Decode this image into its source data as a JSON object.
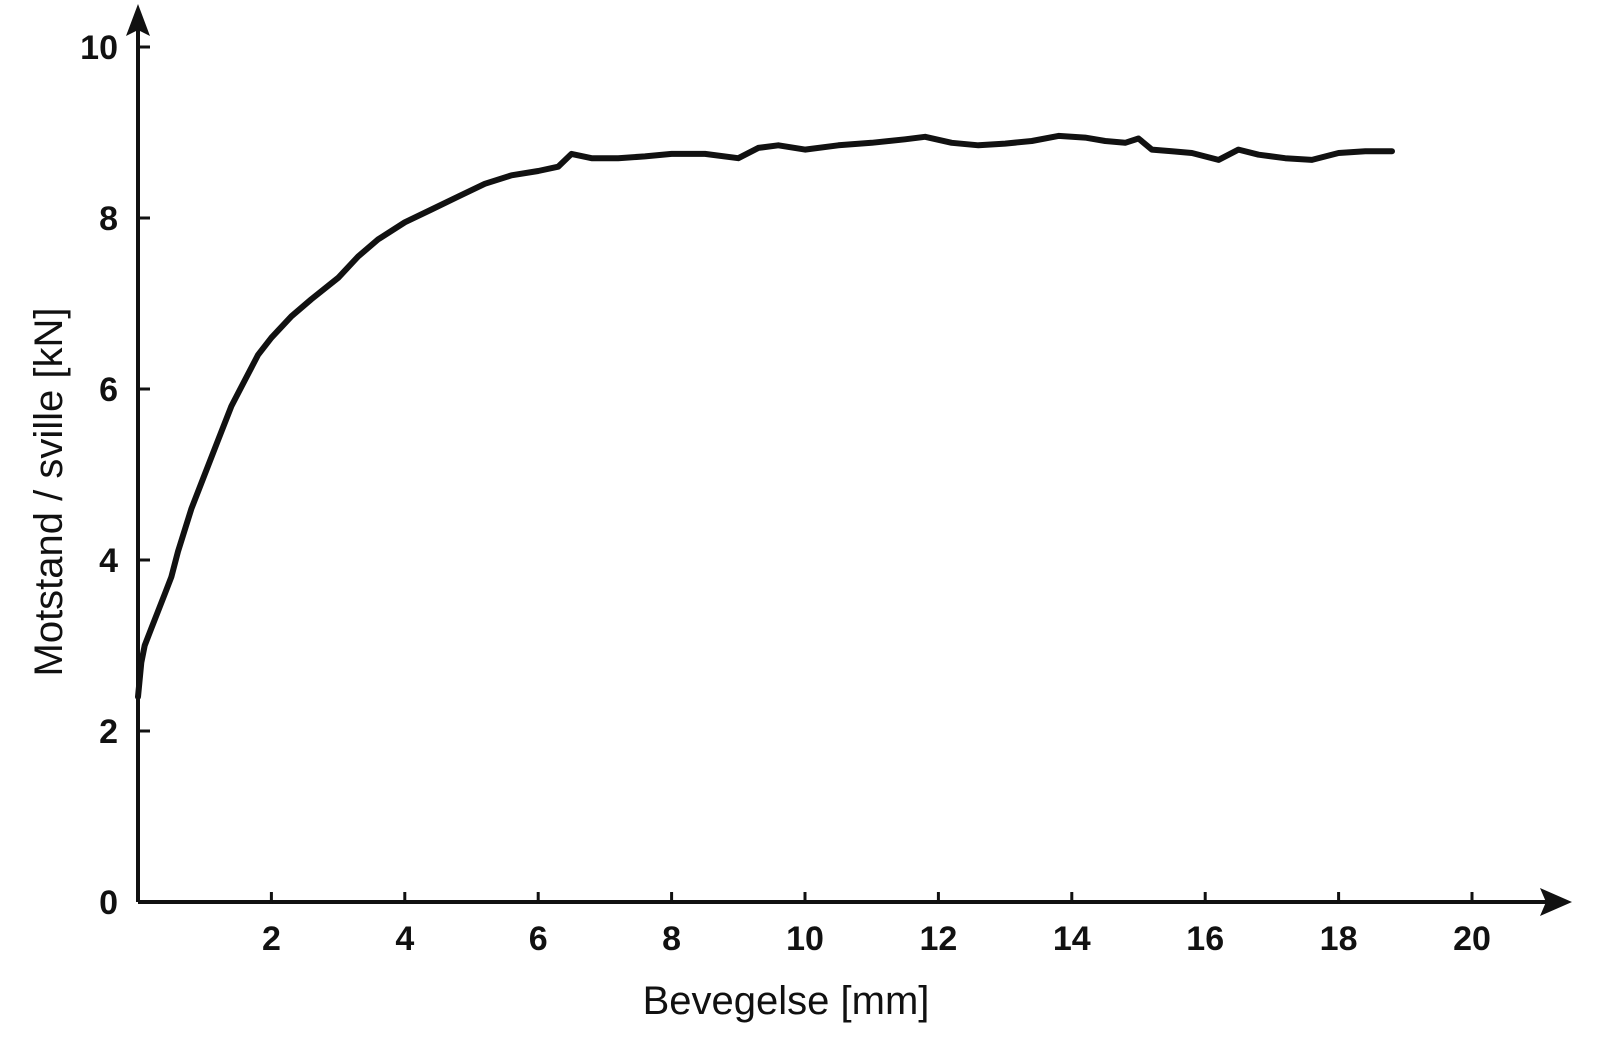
{
  "chart_data": {
    "type": "line",
    "xlabel": "Bevegelse [mm]",
    "ylabel": "Motstand / sville [kN]",
    "xlim": [
      0,
      21
    ],
    "ylim": [
      0,
      10
    ],
    "x_ticks": [
      2,
      4,
      6,
      8,
      10,
      12,
      14,
      16,
      18,
      20
    ],
    "y_ticks": [
      0,
      2,
      4,
      6,
      8,
      10
    ],
    "grid": false,
    "legend": "none",
    "series": [
      {
        "x": [
          0.0,
          0.05,
          0.1,
          0.2,
          0.3,
          0.4,
          0.5,
          0.6,
          0.8,
          1.0,
          1.2,
          1.4,
          1.6,
          1.8,
          2.0,
          2.3,
          2.6,
          3.0,
          3.3,
          3.6,
          4.0,
          4.4,
          4.8,
          5.2,
          5.6,
          6.0,
          6.3,
          6.5,
          6.8,
          7.2,
          7.6,
          8.0,
          8.5,
          9.0,
          9.3,
          9.6,
          10.0,
          10.5,
          11.0,
          11.5,
          11.8,
          12.2,
          12.6,
          13.0,
          13.4,
          13.8,
          14.2,
          14.5,
          14.8,
          15.0,
          15.2,
          15.5,
          15.8,
          16.2,
          16.5,
          16.8,
          17.2,
          17.6,
          18.0,
          18.4,
          18.8
        ],
        "y": [
          2.4,
          2.8,
          3.0,
          3.2,
          3.4,
          3.6,
          3.8,
          4.1,
          4.6,
          5.0,
          5.4,
          5.8,
          6.1,
          6.4,
          6.6,
          6.85,
          7.05,
          7.3,
          7.55,
          7.75,
          7.95,
          8.1,
          8.25,
          8.4,
          8.5,
          8.55,
          8.6,
          8.75,
          8.7,
          8.7,
          8.72,
          8.75,
          8.75,
          8.7,
          8.82,
          8.85,
          8.8,
          8.85,
          8.88,
          8.92,
          8.95,
          8.88,
          8.85,
          8.87,
          8.9,
          8.96,
          8.94,
          8.9,
          8.88,
          8.93,
          8.8,
          8.78,
          8.76,
          8.68,
          8.8,
          8.74,
          8.7,
          8.68,
          8.76,
          8.78,
          8.78
        ]
      }
    ]
  }
}
